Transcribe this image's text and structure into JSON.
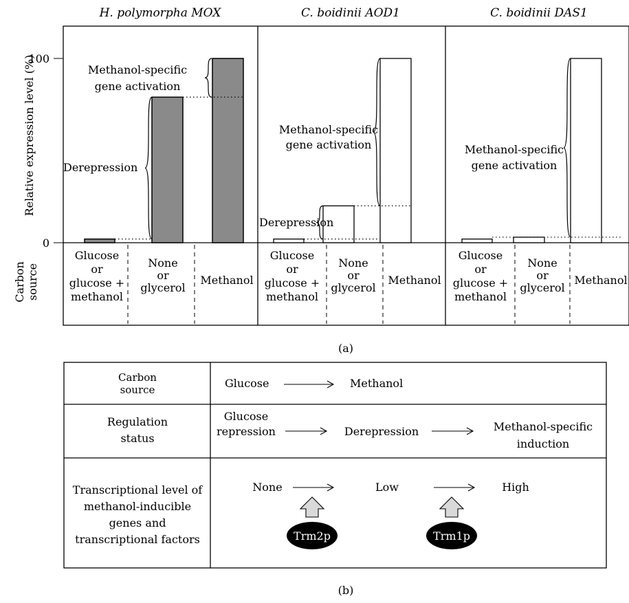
{
  "panel_a": {
    "y_axis_label": "Relative expression level (%)",
    "y_tick_top": "100",
    "y_tick_bottom": "0",
    "carbon_label_1": "Carbon",
    "carbon_label_2": "source",
    "caption": "(a)",
    "chart_data": {
      "type": "bar",
      "ylabel": "Relative expression level (%)",
      "ylim": [
        0,
        100
      ],
      "categories": [
        "Glucose or glucose + methanol",
        "None or glycerol",
        "Methanol"
      ],
      "series": [
        {
          "name": "H. polymorpha MOX",
          "values": [
            2,
            79,
            100
          ]
        },
        {
          "name": "C. boidinii AOD1",
          "values": [
            2,
            20,
            100
          ]
        },
        {
          "name": "C. boidinii DAS1",
          "values": [
            2,
            3,
            100
          ]
        }
      ]
    },
    "panels": [
      {
        "title": "H. polymorpha MOX",
        "bar_style": "gray",
        "categories": [
          {
            "lines": [
              "Glucose",
              "or",
              "glucose +",
              "methanol"
            ]
          },
          {
            "lines": [
              "None",
              "or",
              "glycerol"
            ]
          },
          {
            "lines": [
              "Methanol"
            ]
          }
        ],
        "annotation_a": [
          "Methanol-specific",
          "gene activation"
        ],
        "annotation_b": [
          "Derepression"
        ]
      },
      {
        "title": "C. boidinii AOD1",
        "bar_style": "white",
        "categories": [
          {
            "lines": [
              "Glucose",
              "or",
              "glucose +",
              "methanol"
            ]
          },
          {
            "lines": [
              "None",
              "or",
              "glycerol"
            ]
          },
          {
            "lines": [
              "Methanol"
            ]
          }
        ],
        "annotation_a": [
          "Methanol-specific",
          "gene activation"
        ],
        "annotation_b": [
          "Derepression"
        ]
      },
      {
        "title": "C. boidinii DAS1",
        "bar_style": "white",
        "categories": [
          {
            "lines": [
              "Glucose",
              "or",
              "glucose +",
              "methanol"
            ]
          },
          {
            "lines": [
              "None",
              "or",
              "glycerol"
            ]
          },
          {
            "lines": [
              "Methanol"
            ]
          }
        ],
        "annotation_a": [
          "Methanol-specific",
          "gene activation"
        ]
      }
    ]
  },
  "panel_b": {
    "caption": "(b)",
    "rows": [
      {
        "header": [
          "Carbon",
          "source"
        ],
        "items": [
          "Glucose",
          "Methanol"
        ]
      },
      {
        "header": [
          "Regulation",
          "status"
        ],
        "items": [
          [
            "Glucose",
            "repression"
          ],
          [
            "Derepression"
          ],
          [
            "Methanol-specific",
            "induction"
          ]
        ]
      },
      {
        "header": [
          "Transcriptional level of",
          "methanol-inducible",
          "genes and",
          "transcriptional factors"
        ],
        "items": [
          "None",
          "Low",
          "High"
        ]
      }
    ],
    "factors": [
      "Trm2p",
      "Trm1p"
    ]
  }
}
